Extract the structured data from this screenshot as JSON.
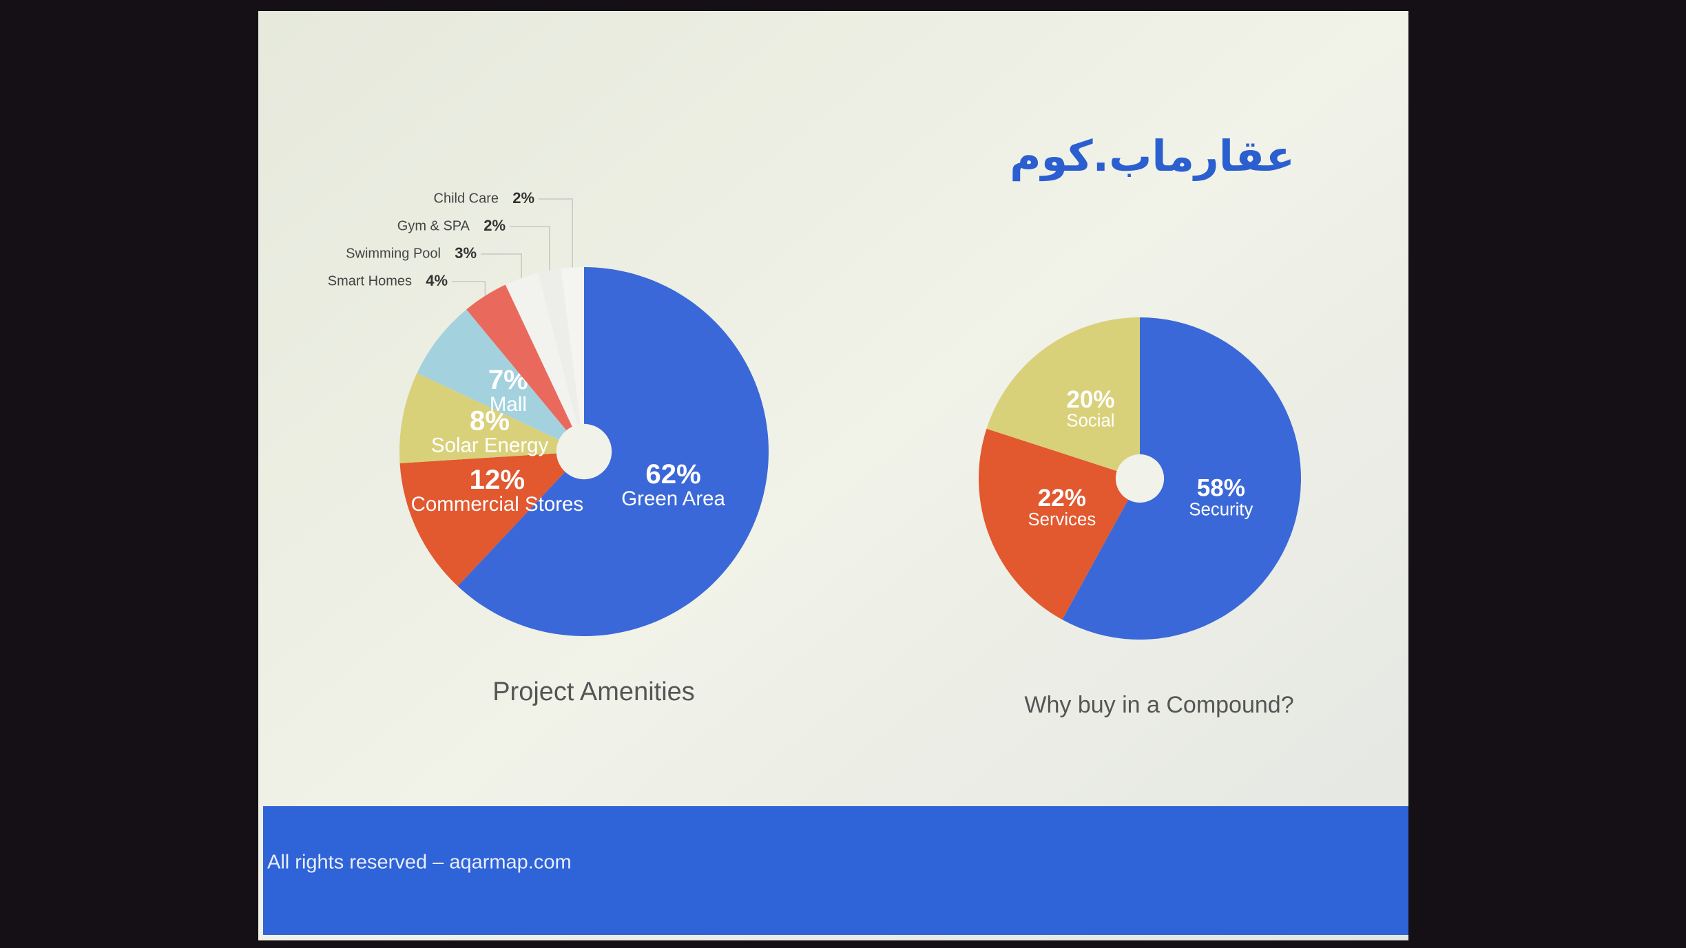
{
  "logo": "عقارماب.كوم",
  "footer": "All rights reserved – aqarmap.com",
  "chart_data": [
    {
      "type": "pie",
      "title": "Project Amenities",
      "categories": [
        "Green Area",
        "Commercial Stores",
        "Solar Energy",
        "Mall",
        "Smart Homes",
        "Swimming Pool",
        "Gym & SPA",
        "Child Care"
      ],
      "values": [
        62,
        12,
        8,
        7,
        4,
        3,
        2,
        2
      ],
      "value_labels": [
        "62%",
        "12%",
        "8%",
        "7%",
        "4%",
        "3%",
        "2%",
        "2%"
      ],
      "colors": [
        "#3b68d8",
        "#e2582f",
        "#d9d07a",
        "#a3d2de",
        "#e96a5c",
        "#f2f2ee",
        "#ededea",
        "#f4f4f0"
      ]
    },
    {
      "type": "pie",
      "title": "Why buy in a Compound?",
      "categories": [
        "Security",
        "Services",
        "Social"
      ],
      "values": [
        58,
        22,
        20
      ],
      "value_labels": [
        "58%",
        "22%",
        "20%"
      ],
      "colors": [
        "#3b68d8",
        "#e2582f",
        "#d9d07a"
      ]
    }
  ]
}
